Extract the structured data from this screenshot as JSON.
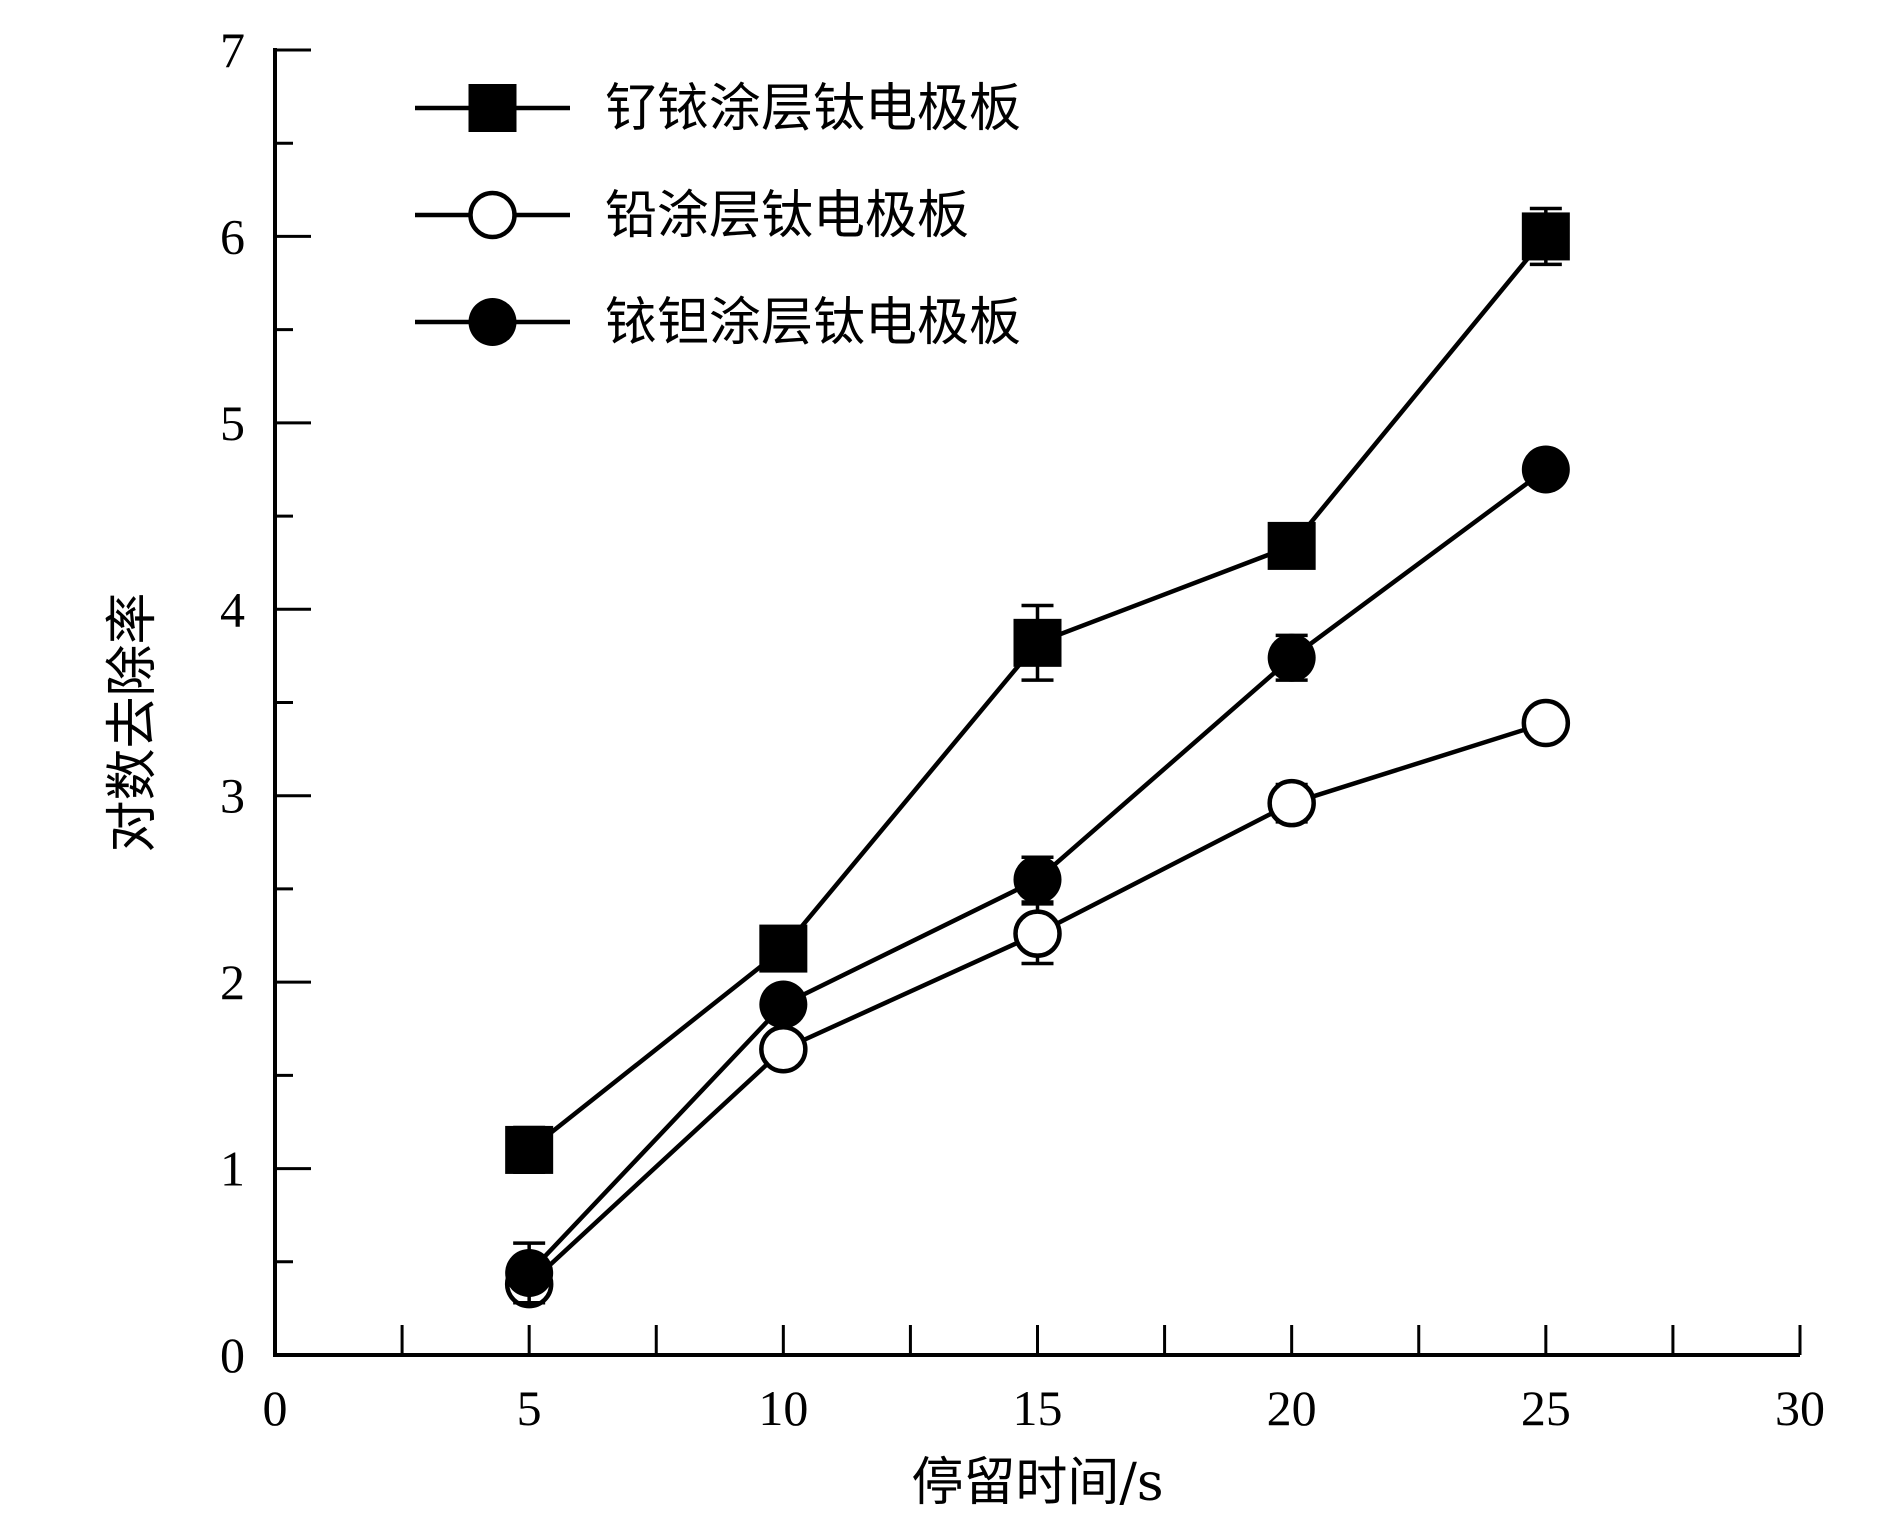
{
  "chart_data": {
    "type": "line",
    "xlabel": "停留时间/s",
    "ylabel": "对数去除率",
    "xlim": [
      0,
      30
    ],
    "ylim": [
      0,
      7
    ],
    "xticks": [
      0,
      5,
      10,
      15,
      20,
      25,
      30
    ],
    "yticks": [
      0,
      1,
      2,
      3,
      4,
      5,
      6,
      7
    ],
    "x_minor_step": 2.5,
    "y_minor_step": 0.5,
    "grid": false,
    "legend_position": "top-left",
    "x": [
      5,
      10,
      15,
      20,
      25
    ],
    "series": [
      {
        "name": "钌铱涂层钛电极板",
        "marker": "filled-square",
        "values": [
          1.1,
          2.18,
          3.82,
          4.34,
          6.0
        ],
        "errors": [
          0.12,
          0.05,
          0.2,
          0.05,
          0.15
        ]
      },
      {
        "name": "铅涂层钛电极板",
        "marker": "open-circle",
        "values": [
          0.38,
          1.64,
          2.26,
          2.96,
          3.39
        ],
        "errors": [
          0.08,
          0.04,
          0.16,
          0.1,
          0.04
        ]
      },
      {
        "name": "铱钽涂层钛电极板",
        "marker": "filled-circle",
        "values": [
          0.44,
          1.88,
          2.55,
          3.74,
          4.75
        ],
        "errors": [
          0.16,
          0.04,
          0.12,
          0.12,
          0.04
        ]
      }
    ],
    "color": "#000000"
  }
}
